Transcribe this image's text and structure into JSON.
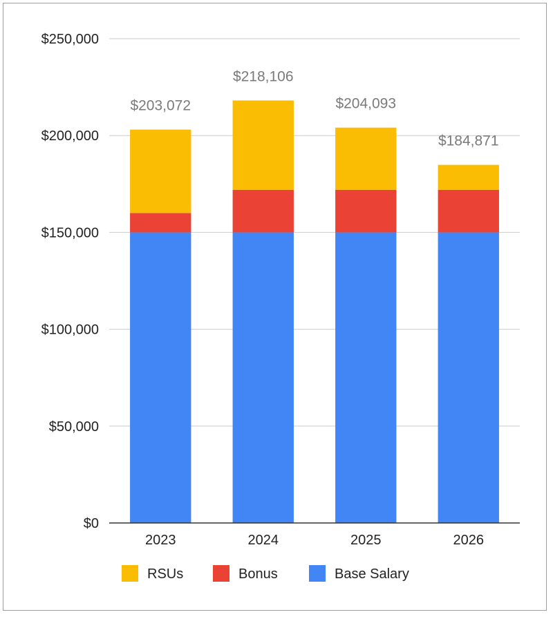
{
  "chart_data": {
    "type": "bar",
    "stacked": true,
    "categories": [
      "2023",
      "2024",
      "2025",
      "2026"
    ],
    "series": [
      {
        "name": "Base Salary",
        "color": "#4285f4",
        "values": [
          150000,
          150000,
          150000,
          150000
        ]
      },
      {
        "name": "Bonus",
        "color": "#ea4335",
        "values": [
          10000,
          22000,
          22000,
          22000
        ]
      },
      {
        "name": "RSUs",
        "color": "#fbbc04",
        "values": [
          43072,
          46106,
          32093,
          12871
        ]
      }
    ],
    "totals": [
      "$203,072",
      "$218,106",
      "$204,093",
      "$184,871"
    ],
    "ylim": [
      0,
      250000
    ],
    "yticks": [
      0,
      50000,
      100000,
      150000,
      200000,
      250000
    ],
    "ytick_labels": [
      "$0",
      "$50,000",
      "$100,000",
      "$150,000",
      "$200,000",
      "$250,000"
    ],
    "legend": [
      "RSUs",
      "Bonus",
      "Base Salary"
    ],
    "legend_position": "bottom",
    "grid": true
  }
}
